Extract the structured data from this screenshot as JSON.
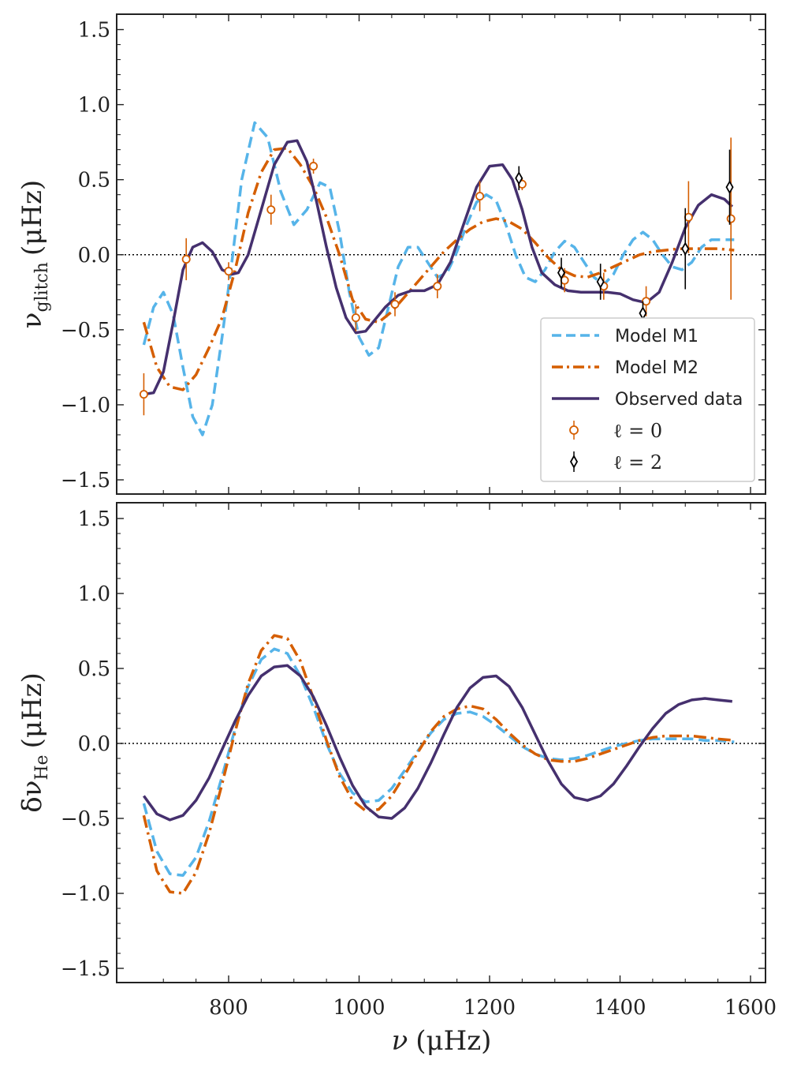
{
  "chart_data": [
    {
      "id": "top",
      "type": "line",
      "ylabel": "ν",
      "ylabel_sub": "glitch",
      "ylabel_unit": "(μHz)",
      "xlim": [
        620,
        1620
      ],
      "ylim": [
        -1.6,
        1.6
      ],
      "yticks": [
        -1.5,
        -1.0,
        -0.5,
        0.0,
        0.5,
        1.0,
        1.5
      ],
      "ytick_labels": [
        "−1.5",
        "−1.0",
        "−0.5",
        "0.0",
        "0.5",
        "1.0",
        "1.5"
      ],
      "zero_line": true,
      "series": [
        {
          "name": "Model M1",
          "style": "dashed",
          "color": "#56B4E9",
          "x": [
            670,
            685,
            700,
            715,
            730,
            745,
            760,
            775,
            790,
            805,
            820,
            840,
            860,
            880,
            900,
            920,
            940,
            955,
            970,
            985,
            1000,
            1015,
            1030,
            1045,
            1060,
            1075,
            1090,
            1105,
            1120,
            1135,
            1150,
            1165,
            1180,
            1195,
            1210,
            1225,
            1240,
            1255,
            1270,
            1285,
            1300,
            1315,
            1330,
            1345,
            1360,
            1375,
            1390,
            1405,
            1420,
            1435,
            1450,
            1465,
            1480,
            1495,
            1510,
            1525,
            1540,
            1555,
            1575
          ],
          "y": [
            -0.6,
            -0.35,
            -0.25,
            -0.4,
            -0.75,
            -1.08,
            -1.2,
            -1.0,
            -0.55,
            -0.05,
            0.5,
            0.88,
            0.78,
            0.42,
            0.2,
            0.3,
            0.48,
            0.45,
            0.15,
            -0.25,
            -0.55,
            -0.67,
            -0.62,
            -0.35,
            -0.08,
            0.05,
            0.05,
            -0.05,
            -0.15,
            -0.12,
            0.02,
            0.2,
            0.35,
            0.4,
            0.36,
            0.2,
            0.0,
            -0.15,
            -0.18,
            -0.1,
            0.02,
            0.09,
            0.05,
            -0.05,
            -0.15,
            -0.2,
            -0.13,
            0.0,
            0.1,
            0.15,
            0.1,
            0.0,
            -0.08,
            -0.1,
            -0.05,
            0.05,
            0.1,
            0.1,
            0.1
          ]
        },
        {
          "name": "Model M2",
          "style": "dashdot",
          "color": "#D55E00",
          "x": [
            670,
            690,
            710,
            730,
            750,
            770,
            790,
            810,
            830,
            850,
            870,
            890,
            910,
            930,
            950,
            970,
            990,
            1010,
            1030,
            1050,
            1070,
            1090,
            1110,
            1130,
            1150,
            1170,
            1190,
            1210,
            1230,
            1250,
            1270,
            1290,
            1310,
            1330,
            1350,
            1370,
            1390,
            1410,
            1430,
            1450,
            1470,
            1490,
            1510,
            1530,
            1550,
            1575
          ],
          "y": [
            -0.45,
            -0.75,
            -0.88,
            -0.9,
            -0.8,
            -0.62,
            -0.42,
            -0.1,
            0.28,
            0.55,
            0.7,
            0.71,
            0.6,
            0.45,
            0.25,
            0.0,
            -0.3,
            -0.43,
            -0.45,
            -0.38,
            -0.28,
            -0.18,
            -0.08,
            0.02,
            0.1,
            0.17,
            0.22,
            0.24,
            0.22,
            0.17,
            0.08,
            -0.02,
            -0.1,
            -0.14,
            -0.15,
            -0.12,
            -0.08,
            -0.04,
            0.0,
            0.02,
            0.03,
            0.04,
            0.04,
            0.04,
            0.04,
            0.03
          ]
        },
        {
          "name": "Observed data",
          "style": "solid",
          "color": "#45306E",
          "x": [
            670,
            685,
            700,
            715,
            730,
            745,
            760,
            775,
            790,
            805,
            815,
            830,
            850,
            870,
            890,
            905,
            920,
            935,
            950,
            965,
            980,
            995,
            1010,
            1025,
            1040,
            1060,
            1080,
            1100,
            1120,
            1140,
            1160,
            1180,
            1200,
            1220,
            1235,
            1250,
            1265,
            1280,
            1300,
            1320,
            1340,
            1360,
            1380,
            1400,
            1420,
            1440,
            1460,
            1480,
            1500,
            1520,
            1540,
            1560,
            1572
          ],
          "y": [
            -0.93,
            -0.92,
            -0.78,
            -0.45,
            -0.1,
            0.05,
            0.08,
            0.02,
            -0.1,
            -0.13,
            -0.12,
            0.0,
            0.3,
            0.6,
            0.75,
            0.76,
            0.62,
            0.35,
            0.05,
            -0.22,
            -0.42,
            -0.52,
            -0.51,
            -0.43,
            -0.35,
            -0.27,
            -0.24,
            -0.24,
            -0.2,
            -0.05,
            0.2,
            0.45,
            0.59,
            0.6,
            0.5,
            0.3,
            0.05,
            -0.12,
            -0.2,
            -0.24,
            -0.25,
            -0.25,
            -0.25,
            -0.26,
            -0.3,
            -0.32,
            -0.25,
            -0.05,
            0.18,
            0.33,
            0.4,
            0.37,
            0.32
          ]
        }
      ],
      "errorbars": [
        {
          "name": "ℓ = 0",
          "marker": "circle",
          "color": "#D55E00",
          "x": [
            670,
            735,
            800,
            865,
            930,
            995,
            1055,
            1120,
            1185,
            1250,
            1315,
            1375,
            1440,
            1505,
            1570
          ],
          "y": [
            -0.93,
            -0.03,
            -0.11,
            0.3,
            0.59,
            -0.42,
            -0.33,
            -0.21,
            0.39,
            0.47,
            -0.17,
            -0.21,
            -0.31,
            0.25,
            0.24
          ],
          "err": [
            0.14,
            0.14,
            0.06,
            0.1,
            0.05,
            0.09,
            0.08,
            0.08,
            0.1,
            0.04,
            0.08,
            0.09,
            0.1,
            0.24,
            0.54
          ]
        },
        {
          "name": "ℓ = 2",
          "marker": "diamond",
          "color": "#000000",
          "x": [
            1245,
            1310,
            1370,
            1435,
            1500,
            1568
          ],
          "y": [
            0.51,
            -0.12,
            -0.18,
            -0.39,
            0.04,
            0.45
          ],
          "err": [
            0.08,
            0.1,
            0.12,
            0.08,
            0.27,
            0.25
          ]
        }
      ],
      "legend": {
        "placement": "lower-right",
        "entries": [
          "Model M1",
          "Model M2",
          "Observed data",
          "ℓ = 0",
          "ℓ = 2"
        ]
      }
    },
    {
      "id": "bottom",
      "type": "line",
      "ylabel": "δν",
      "ylabel_sub": "He",
      "ylabel_unit": "(μHz)",
      "xlabel": "ν",
      "xlabel_unit": "(μHz)",
      "xlim": [
        620,
        1620
      ],
      "ylim": [
        -1.6,
        1.6
      ],
      "xticks": [
        800,
        1000,
        1200,
        1400,
        1600
      ],
      "xtick_labels": [
        "800",
        "1000",
        "1200",
        "1400",
        "1600"
      ],
      "yticks": [
        -1.5,
        -1.0,
        -0.5,
        0.0,
        0.5,
        1.0,
        1.5
      ],
      "ytick_labels": [
        "−1.5",
        "−1.0",
        "−0.5",
        "0.0",
        "0.5",
        "1.0",
        "1.5"
      ],
      "zero_line": true,
      "series": [
        {
          "name": "Model M1",
          "style": "dashed",
          "color": "#56B4E9",
          "x": [
            670,
            690,
            710,
            730,
            750,
            770,
            790,
            810,
            830,
            850,
            870,
            890,
            910,
            930,
            950,
            970,
            990,
            1010,
            1030,
            1050,
            1070,
            1090,
            1110,
            1130,
            1150,
            1170,
            1190,
            1210,
            1230,
            1250,
            1270,
            1290,
            1310,
            1330,
            1350,
            1370,
            1390,
            1410,
            1430,
            1450,
            1470,
            1490,
            1510,
            1530,
            1550,
            1575
          ],
          "y": [
            -0.4,
            -0.72,
            -0.87,
            -0.88,
            -0.76,
            -0.52,
            -0.22,
            0.1,
            0.38,
            0.56,
            0.63,
            0.6,
            0.45,
            0.24,
            0.0,
            -0.2,
            -0.33,
            -0.39,
            -0.38,
            -0.3,
            -0.18,
            -0.05,
            0.07,
            0.16,
            0.2,
            0.21,
            0.18,
            0.12,
            0.05,
            -0.02,
            -0.07,
            -0.1,
            -0.11,
            -0.1,
            -0.08,
            -0.05,
            -0.02,
            0.0,
            0.02,
            0.03,
            0.03,
            0.03,
            0.03,
            0.02,
            0.02,
            0.01
          ]
        },
        {
          "name": "Model M2",
          "style": "dashdot",
          "color": "#D55E00",
          "x": [
            670,
            690,
            710,
            730,
            750,
            770,
            790,
            810,
            830,
            850,
            870,
            890,
            910,
            930,
            950,
            970,
            990,
            1010,
            1030,
            1050,
            1070,
            1090,
            1110,
            1130,
            1150,
            1170,
            1190,
            1210,
            1230,
            1250,
            1270,
            1290,
            1310,
            1330,
            1350,
            1370,
            1390,
            1410,
            1430,
            1450,
            1470,
            1490,
            1510,
            1530,
            1550,
            1575
          ],
          "y": [
            -0.48,
            -0.85,
            -0.99,
            -1.0,
            -0.86,
            -0.6,
            -0.27,
            0.08,
            0.4,
            0.62,
            0.72,
            0.7,
            0.55,
            0.3,
            0.02,
            -0.22,
            -0.38,
            -0.45,
            -0.44,
            -0.35,
            -0.21,
            -0.06,
            0.08,
            0.18,
            0.23,
            0.25,
            0.23,
            0.16,
            0.07,
            -0.01,
            -0.07,
            -0.11,
            -0.12,
            -0.12,
            -0.1,
            -0.07,
            -0.04,
            -0.01,
            0.02,
            0.04,
            0.05,
            0.05,
            0.05,
            0.04,
            0.03,
            0.02
          ]
        },
        {
          "name": "Observed data",
          "style": "solid",
          "color": "#45306E",
          "x": [
            670,
            690,
            710,
            730,
            750,
            770,
            790,
            810,
            830,
            850,
            870,
            890,
            910,
            930,
            950,
            970,
            990,
            1010,
            1030,
            1050,
            1070,
            1090,
            1110,
            1130,
            1150,
            1170,
            1190,
            1210,
            1230,
            1250,
            1270,
            1290,
            1310,
            1330,
            1350,
            1370,
            1390,
            1410,
            1430,
            1450,
            1470,
            1490,
            1510,
            1530,
            1550,
            1572
          ],
          "y": [
            -0.35,
            -0.47,
            -0.51,
            -0.48,
            -0.38,
            -0.23,
            -0.04,
            0.15,
            0.32,
            0.45,
            0.51,
            0.52,
            0.45,
            0.31,
            0.12,
            -0.09,
            -0.28,
            -0.42,
            -0.49,
            -0.5,
            -0.43,
            -0.3,
            -0.13,
            0.06,
            0.24,
            0.37,
            0.44,
            0.45,
            0.38,
            0.24,
            0.06,
            -0.12,
            -0.27,
            -0.36,
            -0.38,
            -0.35,
            -0.27,
            -0.15,
            -0.02,
            0.1,
            0.2,
            0.26,
            0.29,
            0.3,
            0.29,
            0.28
          ]
        }
      ]
    }
  ]
}
